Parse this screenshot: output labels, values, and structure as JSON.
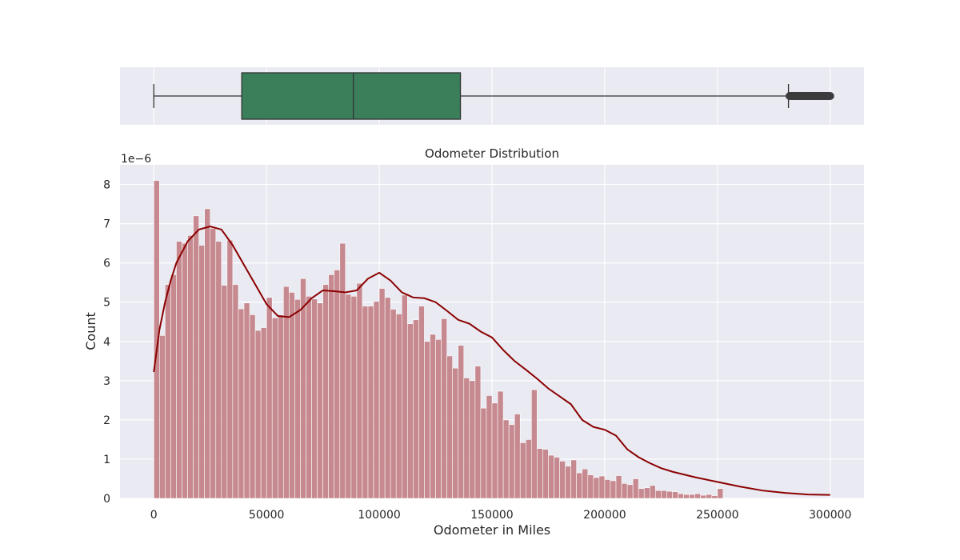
{
  "chart_data": [
    {
      "type": "box",
      "orientation": "horizontal",
      "fill_color": "#3a7f5a",
      "line_color": "#333333",
      "background": "#eaeaf2",
      "grid": true,
      "xlim": [
        -15000,
        315000
      ],
      "stats": {
        "whisker_low": 0,
        "q1": 39000,
        "median": 88500,
        "q3": 136000,
        "whisker_high": 281500,
        "outliers_from": 282000,
        "outliers_to": 300000
      }
    },
    {
      "type": "histogram",
      "title": "Odometer Distribution",
      "xlabel": "Odometer in Miles",
      "ylabel": "Count",
      "y_offset_label": "1e−6",
      "y_scale": 1e-06,
      "xlim": [
        -15000,
        315000
      ],
      "ylim": [
        0,
        8.5
      ],
      "x_ticks": [
        0,
        50000,
        100000,
        150000,
        200000,
        250000,
        300000
      ],
      "y_ticks": [
        0,
        1,
        2,
        3,
        4,
        5,
        6,
        7,
        8
      ],
      "grid": true,
      "background": "#eaeaf2",
      "bar_color": "#c4848a",
      "kde_color": "#8b0000",
      "bin_start": 0,
      "bin_width": 2500,
      "values": [
        8.1,
        4.15,
        5.45,
        5.7,
        6.55,
        6.5,
        6.7,
        7.2,
        6.45,
        7.38,
        6.88,
        6.55,
        5.43,
        6.58,
        5.45,
        4.83,
        4.98,
        4.68,
        4.28,
        4.35,
        5.12,
        4.6,
        4.67,
        5.4,
        5.25,
        5.07,
        5.6,
        5.15,
        5.08,
        4.98,
        5.45,
        5.7,
        5.82,
        6.5,
        5.2,
        5.15,
        5.48,
        4.9,
        4.9,
        5.02,
        5.35,
        5.12,
        4.82,
        4.7,
        5.18,
        4.45,
        4.55,
        4.9,
        4.0,
        4.18,
        4.05,
        4.58,
        3.63,
        3.32,
        3.9,
        3.07,
        3.0,
        3.37,
        2.3,
        2.62,
        2.43,
        2.73,
        2.0,
        1.88,
        2.15,
        1.42,
        1.5,
        2.77,
        1.27,
        1.25,
        1.1,
        1.05,
        0.95,
        0.82,
        0.98,
        0.65,
        0.75,
        0.6,
        0.53,
        0.57,
        0.48,
        0.45,
        0.58,
        0.38,
        0.35,
        0.5,
        0.25,
        0.27,
        0.33,
        0.2,
        0.2,
        0.18,
        0.17,
        0.12,
        0.1,
        0.1,
        0.12,
        0.08,
        0.1,
        0.07,
        0.25
      ],
      "kde": {
        "x": [
          0,
          2500,
          5000,
          7500,
          10000,
          15000,
          20000,
          25000,
          30000,
          35000,
          40000,
          45000,
          50000,
          55000,
          60000,
          65000,
          70000,
          75000,
          80000,
          85000,
          90000,
          95000,
          100000,
          105000,
          110000,
          115000,
          120000,
          125000,
          130000,
          135000,
          140000,
          145000,
          150000,
          155000,
          160000,
          165000,
          170000,
          175000,
          180000,
          185000,
          190000,
          195000,
          200000,
          205000,
          210000,
          215000,
          220000,
          225000,
          230000,
          240000,
          250000,
          260000,
          270000,
          280000,
          290000,
          300000
        ],
        "y": [
          3.22,
          4.3,
          5.0,
          5.55,
          6.0,
          6.55,
          6.85,
          6.93,
          6.85,
          6.45,
          5.95,
          5.45,
          4.95,
          4.65,
          4.62,
          4.8,
          5.1,
          5.3,
          5.28,
          5.25,
          5.3,
          5.6,
          5.75,
          5.55,
          5.25,
          5.12,
          5.1,
          5.0,
          4.78,
          4.55,
          4.45,
          4.25,
          4.1,
          3.78,
          3.5,
          3.28,
          3.05,
          2.8,
          2.6,
          2.4,
          2.0,
          1.82,
          1.75,
          1.6,
          1.25,
          1.05,
          0.9,
          0.77,
          0.68,
          0.54,
          0.42,
          0.3,
          0.2,
          0.14,
          0.1,
          0.09
        ]
      }
    }
  ]
}
